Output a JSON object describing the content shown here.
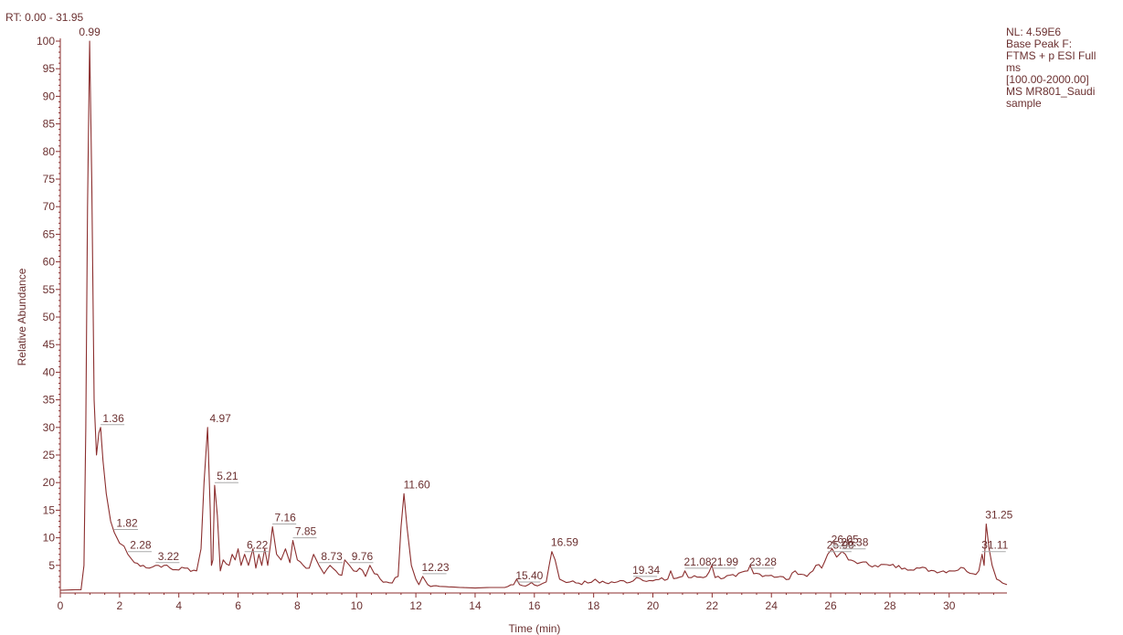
{
  "chart_data": {
    "type": "line",
    "range_label": "RT: 0.00 - 31.95",
    "xlabel": "Time (min)",
    "ylabel": "Relative Abundance",
    "xlim": [
      0,
      31.95
    ],
    "ylim": [
      0,
      100
    ],
    "x_ticks": [
      0,
      2,
      4,
      6,
      8,
      10,
      12,
      14,
      16,
      18,
      20,
      22,
      24,
      26,
      28,
      30
    ],
    "y_ticks": [
      5,
      10,
      15,
      20,
      25,
      30,
      35,
      40,
      45,
      50,
      55,
      60,
      65,
      70,
      75,
      80,
      85,
      90,
      95,
      100
    ],
    "grid": false,
    "legend": "none",
    "line_color": "#8b2e2e",
    "series": [
      {
        "x": [
          0,
          0.7,
          0.8,
          0.86,
          0.92,
          0.99,
          1.06,
          1.14,
          1.22,
          1.3,
          1.36,
          1.44,
          1.55,
          1.7,
          1.82,
          2.0,
          2.15,
          2.28,
          2.5,
          2.8,
          3.0,
          3.22,
          3.5,
          3.8,
          4.2,
          4.6,
          4.75,
          4.85,
          4.97,
          5.06,
          5.1,
          5.15,
          5.21,
          5.3,
          5.4,
          5.5,
          5.7,
          5.8,
          5.9,
          6.0,
          6.1,
          6.22,
          6.35,
          6.5,
          6.6,
          6.7,
          6.8,
          6.9,
          7.0,
          7.1,
          7.16,
          7.3,
          7.45,
          7.6,
          7.75,
          7.85,
          8.0,
          8.2,
          8.4,
          8.55,
          8.73,
          8.9,
          9.1,
          9.3,
          9.5,
          9.6,
          9.76,
          9.9,
          10.1,
          10.3,
          10.45,
          10.6,
          10.8,
          11.0,
          11.2,
          11.4,
          11.5,
          11.6,
          11.7,
          11.85,
          12.0,
          12.1,
          12.23,
          12.4,
          12.8,
          13.5,
          14.0,
          14.5,
          15.0,
          15.3,
          15.4,
          15.5,
          15.8,
          16.2,
          16.4,
          16.5,
          16.59,
          16.7,
          16.85,
          17.2,
          17.8,
          18.05,
          18.2,
          18.8,
          19.34,
          19.45,
          20.0,
          20.5,
          20.6,
          20.7,
          21.0,
          21.08,
          21.2,
          21.8,
          21.99,
          22.1,
          22.8,
          23.2,
          23.28,
          23.4,
          24.0,
          24.6,
          24.8,
          25.2,
          25.5,
          25.7,
          25.9,
          26.05,
          26.2,
          26.38,
          26.6,
          27.0,
          27.5,
          28.0,
          28.5,
          29.0,
          29.5,
          30.0,
          30.5,
          30.8,
          31.0,
          31.11,
          31.18,
          31.25,
          31.35,
          31.45,
          31.6,
          31.8,
          31.95
        ],
        "values": [
          0.5,
          0.6,
          5,
          30,
          70,
          100,
          75,
          35,
          25,
          29,
          30,
          24,
          18,
          13,
          11,
          9,
          8.5,
          7,
          5.5,
          5,
          4.5,
          5,
          5,
          4.2,
          4.5,
          4,
          8,
          20,
          30,
          15,
          5,
          6,
          19.5,
          14,
          4,
          6,
          5,
          7,
          6,
          8,
          5,
          7,
          5,
          8,
          4.5,
          7,
          5,
          8,
          5,
          9,
          12,
          7,
          6,
          8,
          5.5,
          9.5,
          6,
          5,
          4.5,
          7,
          5,
          3.5,
          5,
          4,
          3.2,
          6,
          5,
          4,
          4.5,
          3,
          5,
          3.5,
          2.5,
          2,
          1.8,
          3,
          12,
          18,
          12,
          5,
          2.5,
          1.5,
          3,
          1.5,
          1.2,
          1,
          0.9,
          1,
          1,
          1.5,
          2.5,
          1.5,
          1.5,
          1.5,
          2,
          5,
          7.5,
          6,
          2.5,
          2,
          1.8,
          2.5,
          1.8,
          2,
          2.2,
          2.8,
          2.2,
          2.5,
          4,
          2.6,
          3,
          4,
          2.8,
          3,
          5,
          2.8,
          3,
          4,
          5,
          3.5,
          3.2,
          2.5,
          4,
          3,
          5,
          4.5,
          7,
          8,
          6.5,
          7.5,
          6,
          5.5,
          5,
          5,
          4.5,
          4.5,
          4,
          4,
          4.5,
          3.5,
          4,
          7,
          5,
          12.5,
          8,
          5,
          2.5,
          1.8,
          1.5
        ]
      }
    ],
    "peak_labels": [
      {
        "label": "0.99",
        "x": 0.99,
        "y": 100
      },
      {
        "label": "1.36",
        "x": 1.36,
        "y": 30
      },
      {
        "label": "1.82",
        "x": 1.82,
        "y": 11
      },
      {
        "label": "2.28",
        "x": 2.28,
        "y": 7
      },
      {
        "label": "3.22",
        "x": 3.22,
        "y": 5
      },
      {
        "label": "4.97",
        "x": 4.97,
        "y": 30
      },
      {
        "label": "5.21",
        "x": 5.21,
        "y": 19.5
      },
      {
        "label": "6.22",
        "x": 6.22,
        "y": 7
      },
      {
        "label": "7.16",
        "x": 7.16,
        "y": 12
      },
      {
        "label": "7.85",
        "x": 7.85,
        "y": 9.5
      },
      {
        "label": "8.73",
        "x": 8.73,
        "y": 5
      },
      {
        "label": "9.76",
        "x": 9.76,
        "y": 5
      },
      {
        "label": "11.60",
        "x": 11.6,
        "y": 18
      },
      {
        "label": "12.23",
        "x": 12.23,
        "y": 3
      },
      {
        "label": "15.40",
        "x": 15.4,
        "y": 1.5
      },
      {
        "label": "16.59",
        "x": 16.59,
        "y": 7.5
      },
      {
        "label": "19.34",
        "x": 19.34,
        "y": 2.5
      },
      {
        "label": "21.08",
        "x": 21.08,
        "y": 4
      },
      {
        "label": "21.99",
        "x": 21.99,
        "y": 4
      },
      {
        "label": "23.28",
        "x": 23.28,
        "y": 4
      },
      {
        "label": "25.90",
        "x": 25.9,
        "y": 7
      },
      {
        "label": "26.05",
        "x": 26.05,
        "y": 8
      },
      {
        "label": "26.38",
        "x": 26.38,
        "y": 7.5
      },
      {
        "label": "31.11",
        "x": 31.11,
        "y": 7
      },
      {
        "label": "31.25",
        "x": 31.25,
        "y": 12.5
      }
    ]
  },
  "info": {
    "lines": [
      "NL: 4.59E6",
      "Base Peak F:",
      "FTMS + p ESI Full",
      "ms",
      "[100.00-2000.00]",
      "MS MR801_Saudi",
      "sample"
    ]
  }
}
